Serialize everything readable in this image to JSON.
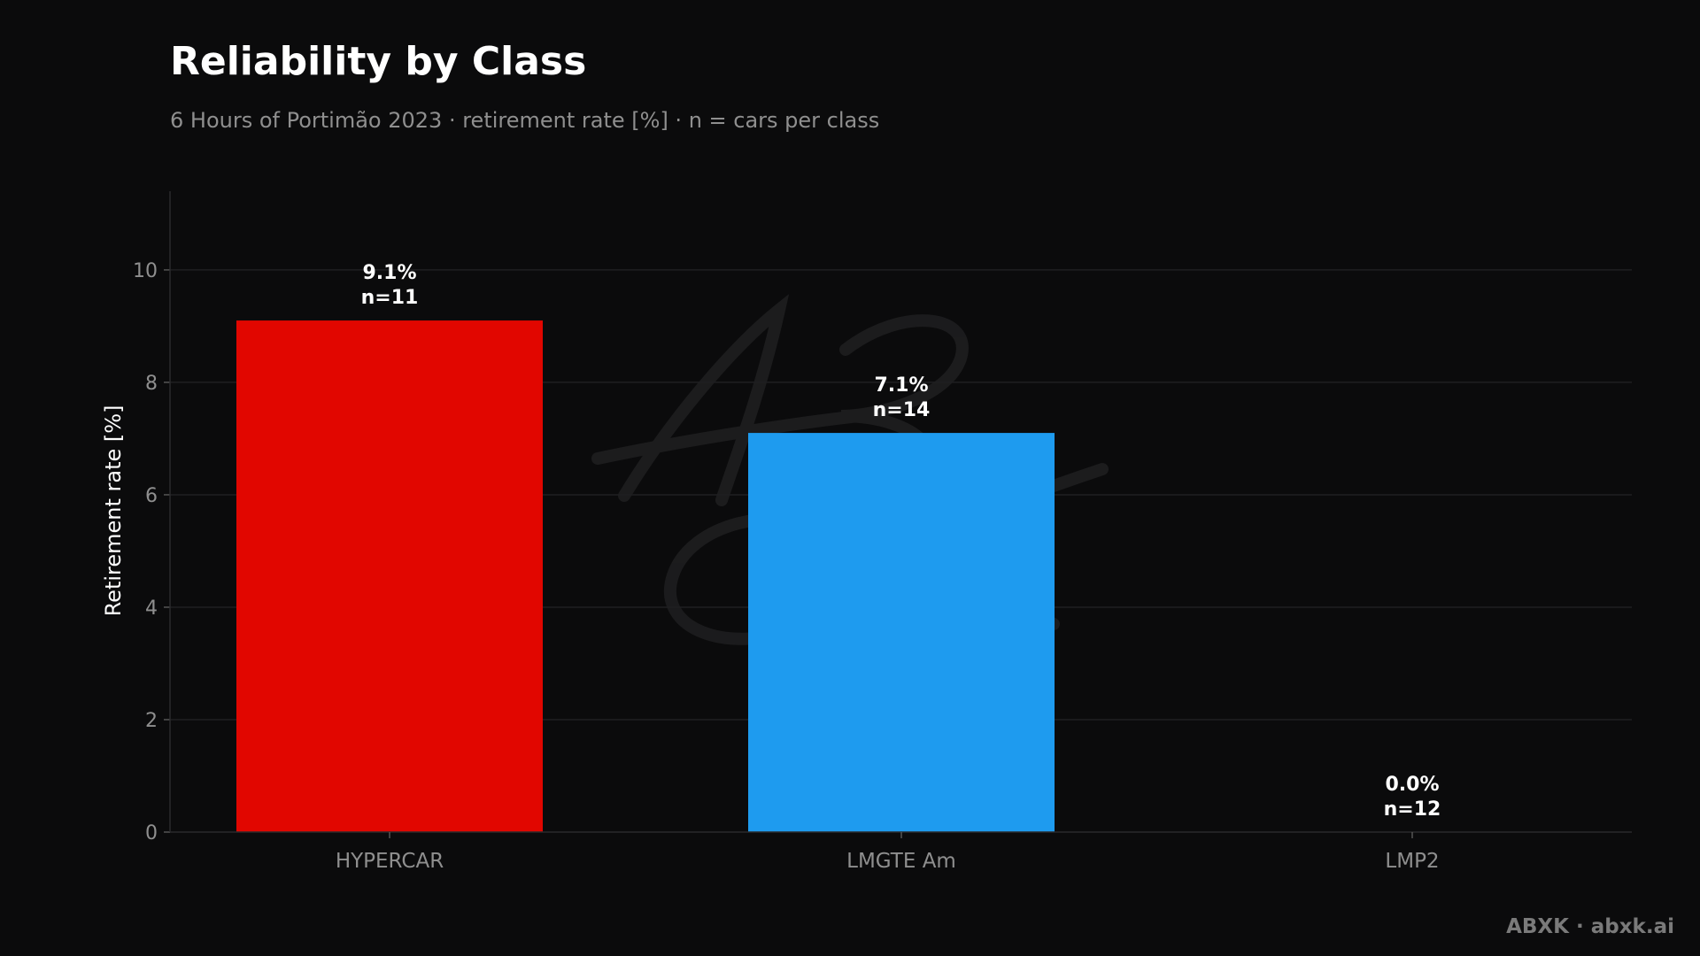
{
  "title": "Reliability by Class",
  "subtitle": "6 Hours of Portimão 2023 · retirement rate [%] · n = cars per class",
  "watermark": "ABXK · abxk.ai",
  "colors": {
    "background": "#0b0b0c",
    "hypercar": "#e10600",
    "lmgte_am": "#1e9bef",
    "lmp2": "#0b0b0c",
    "grid": "#1f1f21",
    "tick_text": "#8f8f8f",
    "label_text": "#ffffff"
  },
  "chart_data": {
    "type": "bar",
    "title": "Reliability by Class",
    "ylabel": "Retirement rate [%]",
    "xlabel": "",
    "ylim": [
      0,
      11.4
    ],
    "yticks": [
      0,
      2,
      4,
      6,
      8,
      10
    ],
    "grid": true,
    "categories": [
      "HYPERCAR",
      "LMGTE Am",
      "LMP2"
    ],
    "values": [
      9.1,
      7.1,
      0.0
    ],
    "n": [
      11,
      14,
      12
    ],
    "value_labels": [
      "9.1%",
      "7.1%",
      "0.0%"
    ],
    "n_labels": [
      "n=11",
      "n=14",
      "n=12"
    ]
  }
}
